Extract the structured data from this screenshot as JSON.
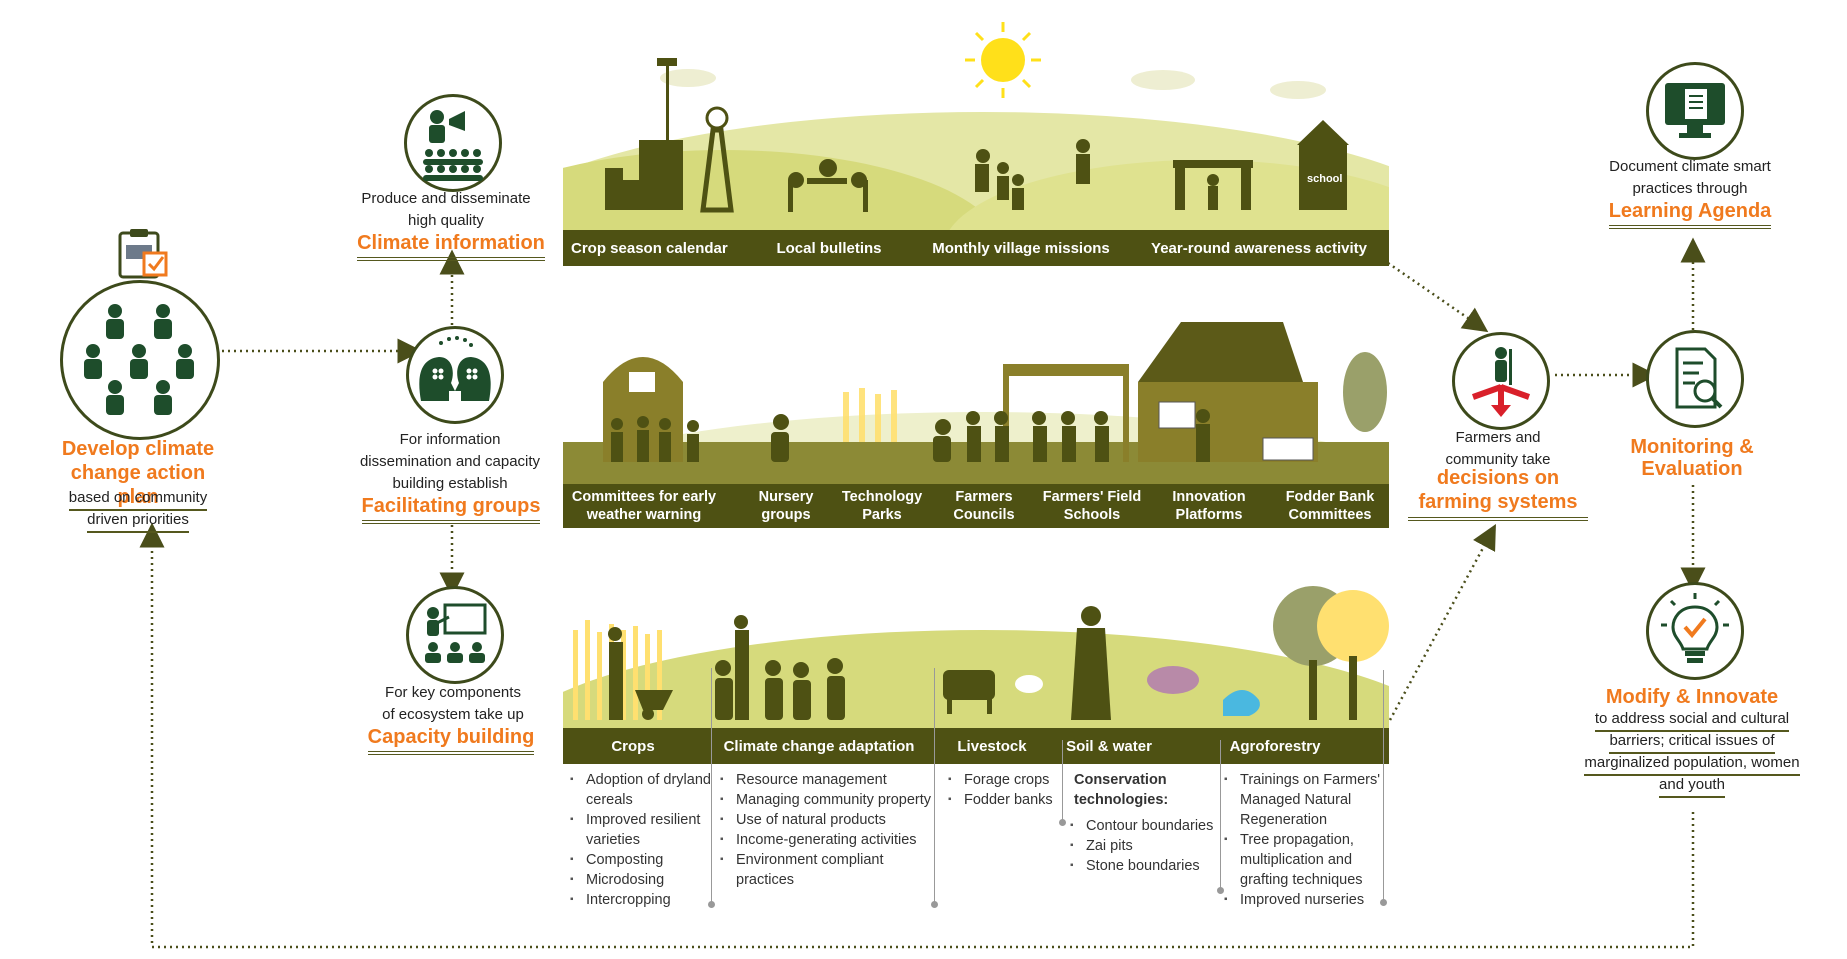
{
  "left": {
    "title": "Develop climate change action plan",
    "sub": "based on community driven priorities"
  },
  "climate_info": {
    "desc": "Produce and disseminate high quality",
    "title": "Climate information",
    "band": [
      "Crop season calendar",
      "Local bulletins",
      "Monthly village missions",
      "Year-round awareness activity"
    ]
  },
  "facilitating": {
    "desc": "For information dissemination and capacity building establish",
    "title": "Facilitating groups",
    "band": [
      "Committees for early weather warning",
      "Nursery groups",
      "Technology Parks",
      "Farmers Councils",
      "Farmers' Field Schools",
      "Innovation Platforms",
      "Fodder Bank Committees"
    ]
  },
  "capacity": {
    "desc": "For key components of ecosystem take up",
    "title": "Capacity building",
    "band": [
      "Crops",
      "Climate change adaptation",
      "Livestock",
      "Soil & water",
      "Agroforestry"
    ],
    "lists": {
      "crops": [
        "Adoption of dryland cereals",
        "Improved resilient varieties",
        "Composting",
        "Microdosing",
        "Intercropping"
      ],
      "cca": [
        "Resource management",
        "Managing community property",
        "Use of natural products",
        "Income-generating activities",
        "Environment compliant practices"
      ],
      "livestock": [
        "Forage crops",
        "Fodder banks"
      ],
      "soil_head": "Conservation technologies:",
      "soil": [
        "Contour boundaries",
        "Zai pits",
        "Stone boundaries"
      ],
      "agro": [
        "Trainings on Farmers' Managed Natural Regeneration",
        "Tree propagation, multiplication and grafting techniques",
        "Improved nurseries"
      ]
    }
  },
  "decisions": {
    "desc": "Farmers and community take",
    "title": "decisions on farming systems"
  },
  "learning": {
    "desc": "Document climate smart practices through",
    "title": "Learning Agenda"
  },
  "monitoring": {
    "title": "Monitoring & Evaluation"
  },
  "modify": {
    "title": "Modify & Innovate",
    "desc": "to address social and cultural barriers; critical issues of marginalized population, women and youth"
  },
  "band_labels": {
    "school": "school"
  },
  "colors": {
    "accent": "#f07a1e",
    "band": "#4e5113",
    "icon": "#3d4a1b",
    "hill": "#e4e7a6"
  }
}
